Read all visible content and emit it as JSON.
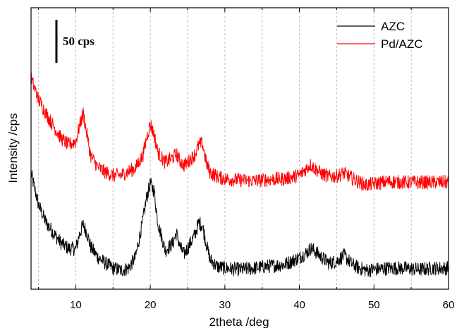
{
  "chart_data": {
    "type": "line",
    "xlabel": "2theta /deg",
    "ylabel": "Intensity /cps",
    "xlim": [
      4,
      60
    ],
    "ylim": [
      0,
      400
    ],
    "x_ticks": [
      10,
      20,
      30,
      40,
      50,
      60
    ],
    "x_tick_labels": [
      "10",
      "20",
      "30",
      "40",
      "50",
      "60"
    ],
    "y_tick_labels_shown": false,
    "grid": "vertical dashed every 5 deg",
    "legend_position": "top-right",
    "scale_bar": {
      "label": "50 cps",
      "value": 50
    },
    "colors": {
      "AZC": "#000000",
      "Pd/AZC": "#ff0000",
      "grid": "#bdbdbd"
    },
    "series": [
      {
        "name": "AZC",
        "color": "#000000",
        "x": [
          4.0,
          5.0,
          6.0,
          7.0,
          8.0,
          9.0,
          10.0,
          10.5,
          11.0,
          11.5,
          12.0,
          13.0,
          14.0,
          15.0,
          16.0,
          17.0,
          18.0,
          19.0,
          19.5,
          20.0,
          20.5,
          21.0,
          22.0,
          23.0,
          23.5,
          24.0,
          24.5,
          25.0,
          26.0,
          26.5,
          27.0,
          27.5,
          28.0,
          29.0,
          30.0,
          32.0,
          34.0,
          36.0,
          38.0,
          40.0,
          41.0,
          41.5,
          42.0,
          43.0,
          44.0,
          45.0,
          46.0,
          47.0,
          48.0,
          49.0,
          50.0,
          52.0,
          54.0,
          56.0,
          58.0,
          60.0
        ],
        "y": [
          165,
          120,
          95,
          80,
          66,
          58,
          57,
          78,
          92,
          80,
          60,
          45,
          37,
          30,
          27,
          29,
          45,
          98,
          130,
          150,
          140,
          95,
          55,
          65,
          80,
          60,
          50,
          58,
          78,
          95,
          90,
          65,
          42,
          32,
          30,
          28,
          30,
          33,
          35,
          45,
          52,
          58,
          55,
          45,
          37,
          40,
          48,
          36,
          30,
          27,
          28,
          30,
          30,
          28,
          30,
          30
        ]
      },
      {
        "name": "Pd/AZC",
        "color": "#ff0000",
        "x": [
          4.0,
          5.0,
          6.0,
          7.0,
          8.0,
          9.0,
          10.0,
          10.5,
          11.0,
          11.5,
          12.0,
          13.0,
          14.0,
          15.0,
          16.0,
          17.0,
          18.0,
          19.0,
          19.5,
          20.0,
          20.5,
          21.0,
          22.0,
          23.0,
          23.5,
          24.0,
          24.5,
          25.0,
          26.0,
          26.5,
          27.0,
          27.5,
          28.0,
          29.0,
          30.0,
          32.0,
          34.0,
          36.0,
          38.0,
          40.0,
          41.0,
          41.5,
          42.0,
          43.0,
          44.0,
          45.0,
          46.0,
          47.0,
          48.0,
          49.0,
          50.0,
          52.0,
          54.0,
          56.0,
          58.0,
          60.0
        ],
        "y": [
          300,
          270,
          250,
          232,
          215,
          205,
          210,
          232,
          250,
          220,
          190,
          173,
          166,
          162,
          162,
          167,
          172,
          190,
          215,
          235,
          220,
          195,
          180,
          187,
          192,
          182,
          176,
          180,
          192,
          205,
          207,
          180,
          166,
          160,
          157,
          155,
          154,
          156,
          157,
          162,
          172,
          177,
          172,
          164,
          160,
          161,
          165,
          158,
          152,
          148,
          150,
          153,
          152,
          152,
          152,
          152
        ]
      }
    ]
  }
}
